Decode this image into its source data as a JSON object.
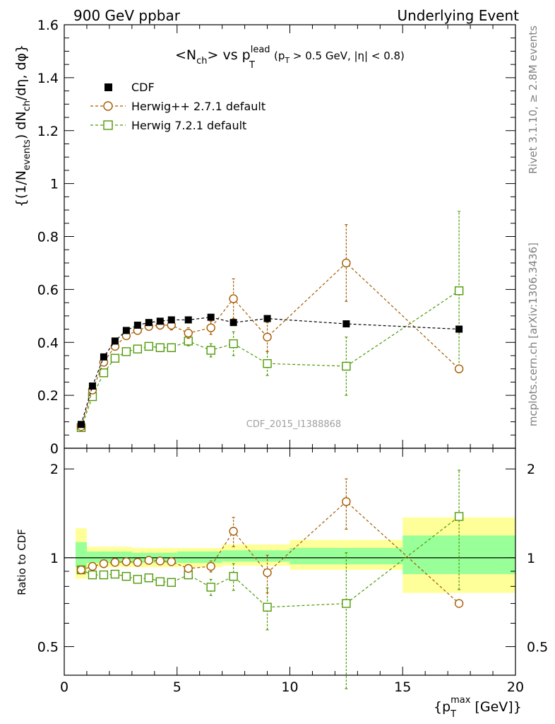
{
  "header": {
    "left": "900 GeV ppbar",
    "right": "Underlying Event"
  },
  "side": {
    "rivet": "Rivet 3.1.10, ≥ 2.8M events",
    "mcplots": "mcplots.cern.ch [arXiv:1306.3436]"
  },
  "chart_data": [
    {
      "type": "scatter",
      "panel": "main",
      "title": "<N_ch> vs p_T^lead (p_T > 0.5 GeV, |η| < 0.8)",
      "title_parts": {
        "a": "<N",
        "a_sub": "ch",
        "b": "> vs p",
        "b_sup": "lead",
        "b_sub": "T",
        "c": "(p",
        "c_sub": "T",
        "d": " > 0.5 GeV, |η| < 0.8)"
      },
      "ylabel": "{(1/N_events) dN_ch/dη, dφ}",
      "ylabel_parts": {
        "a": "{(1/N",
        "a_sub": "events",
        "b": ") dN",
        "b_sub": "ch",
        "c": "/dη, dφ}"
      },
      "watermark": "CDF_2015_I1388868",
      "xlim": [
        0,
        20
      ],
      "ylim": [
        0,
        1.6
      ],
      "yticks": [
        "0",
        "0.2",
        "0.4",
        "0.6",
        "0.8",
        "1",
        "1.2",
        "1.4",
        "1.6"
      ],
      "legend_position": "top-left",
      "series": [
        {
          "name": "CDF",
          "color": "#000000",
          "marker": "filled-square",
          "x": [
            0.75,
            1.25,
            1.75,
            2.25,
            2.75,
            3.25,
            3.75,
            4.25,
            4.75,
            5.5,
            6.5,
            7.5,
            9.0,
            12.5,
            17.5
          ],
          "y": [
            0.09,
            0.235,
            0.345,
            0.405,
            0.445,
            0.465,
            0.475,
            0.48,
            0.485,
            0.485,
            0.495,
            0.475,
            0.49,
            0.47,
            0.45
          ]
        },
        {
          "name": "Herwig++ 2.7.1 default",
          "color": "#a65a00",
          "marker": "open-circle",
          "x": [
            0.75,
            1.25,
            1.75,
            2.25,
            2.75,
            3.25,
            3.75,
            4.25,
            4.75,
            5.5,
            6.5,
            7.5,
            9.0,
            12.5,
            17.5
          ],
          "y": [
            0.082,
            0.22,
            0.325,
            0.385,
            0.425,
            0.445,
            0.46,
            0.465,
            0.465,
            0.435,
            0.455,
            0.565,
            0.42,
            0.7,
            0.3
          ],
          "err": [
            0.006,
            0.01,
            0.01,
            0.01,
            0.01,
            0.01,
            0.012,
            0.015,
            0.018,
            0.02,
            0.025,
            0.075,
            0.055,
            0.145,
            0.012
          ]
        },
        {
          "name": "Herwig 7.2.1 default",
          "color": "#4e9a06",
          "marker": "open-square",
          "x": [
            0.75,
            1.25,
            1.75,
            2.25,
            2.75,
            3.25,
            3.75,
            4.25,
            4.75,
            5.5,
            6.5,
            7.5,
            9.0,
            12.5,
            17.5
          ],
          "y": [
            0.078,
            0.195,
            0.285,
            0.34,
            0.365,
            0.375,
            0.385,
            0.38,
            0.38,
            0.405,
            0.37,
            0.395,
            0.32,
            0.31,
            0.595
          ],
          "err": [
            0.006,
            0.01,
            0.01,
            0.01,
            0.01,
            0.01,
            0.012,
            0.015,
            0.015,
            0.018,
            0.025,
            0.045,
            0.045,
            0.11,
            0.3
          ]
        }
      ]
    },
    {
      "type": "scatter",
      "panel": "ratio",
      "ylabel": "Ratio to CDF",
      "xlabel": "{p_T^max [GeV]}",
      "xlabel_parts": {
        "a": "{p",
        "a_sub": "T",
        "a_sup": "max",
        "b": " [GeV]}"
      },
      "xlim": [
        0,
        20
      ],
      "ylim": [
        0.4,
        2.35
      ],
      "log_y": true,
      "xticks": [
        "0",
        "5",
        "10",
        "15",
        "20"
      ],
      "yticks": [
        "0.5",
        "1",
        "2"
      ],
      "bands": [
        {
          "x0": 0.5,
          "x1": 1.0,
          "yellow": [
            0.85,
            1.26
          ],
          "green": [
            0.93,
            1.13
          ]
        },
        {
          "x0": 1.0,
          "x1": 3.0,
          "yellow": [
            0.93,
            1.09
          ],
          "green": [
            0.96,
            1.05
          ]
        },
        {
          "x0": 3.0,
          "x1": 5.0,
          "yellow": [
            0.93,
            1.08
          ],
          "green": [
            0.96,
            1.04
          ]
        },
        {
          "x0": 5.0,
          "x1": 7.0,
          "yellow": [
            0.93,
            1.08
          ],
          "green": [
            0.96,
            1.05
          ]
        },
        {
          "x0": 7.0,
          "x1": 10.0,
          "yellow": [
            0.94,
            1.11
          ],
          "green": [
            0.97,
            1.06
          ]
        },
        {
          "x0": 10.0,
          "x1": 15.0,
          "yellow": [
            0.91,
            1.15
          ],
          "green": [
            0.95,
            1.08
          ]
        },
        {
          "x0": 15.0,
          "x1": 20.0,
          "yellow": [
            0.76,
            1.37
          ],
          "green": [
            0.88,
            1.19
          ]
        }
      ],
      "series": [
        {
          "name": "Herwig++ 2.7.1 default",
          "color": "#a65a00",
          "x": [
            0.75,
            1.25,
            1.75,
            2.25,
            2.75,
            3.25,
            3.75,
            4.25,
            4.75,
            5.5,
            6.5,
            7.5,
            9.0,
            12.5,
            17.5
          ],
          "y": [
            0.91,
            0.935,
            0.955,
            0.965,
            0.97,
            0.965,
            0.98,
            0.975,
            0.97,
            0.92,
            0.935,
            1.23,
            0.89,
            1.55,
            0.7
          ],
          "err": [
            0.01,
            0.01,
            0.01,
            0.01,
            0.01,
            0.01,
            0.012,
            0.015,
            0.02,
            0.025,
            0.04,
            0.14,
            0.13,
            0.3,
            0.01
          ]
        },
        {
          "name": "Herwig 7.2.1 default",
          "color": "#4e9a06",
          "x": [
            0.75,
            1.25,
            1.75,
            2.25,
            2.75,
            3.25,
            3.75,
            4.25,
            4.75,
            5.5,
            6.5,
            7.5,
            9.0,
            12.5,
            17.5
          ],
          "y": [
            0.91,
            0.875,
            0.875,
            0.88,
            0.865,
            0.845,
            0.855,
            0.83,
            0.825,
            0.875,
            0.795,
            0.865,
            0.68,
            0.7,
            1.38
          ],
          "err": [
            0.01,
            0.01,
            0.01,
            0.01,
            0.01,
            0.01,
            0.012,
            0.015,
            0.02,
            0.025,
            0.05,
            0.09,
            0.11,
            0.34,
            0.6
          ]
        }
      ]
    }
  ]
}
